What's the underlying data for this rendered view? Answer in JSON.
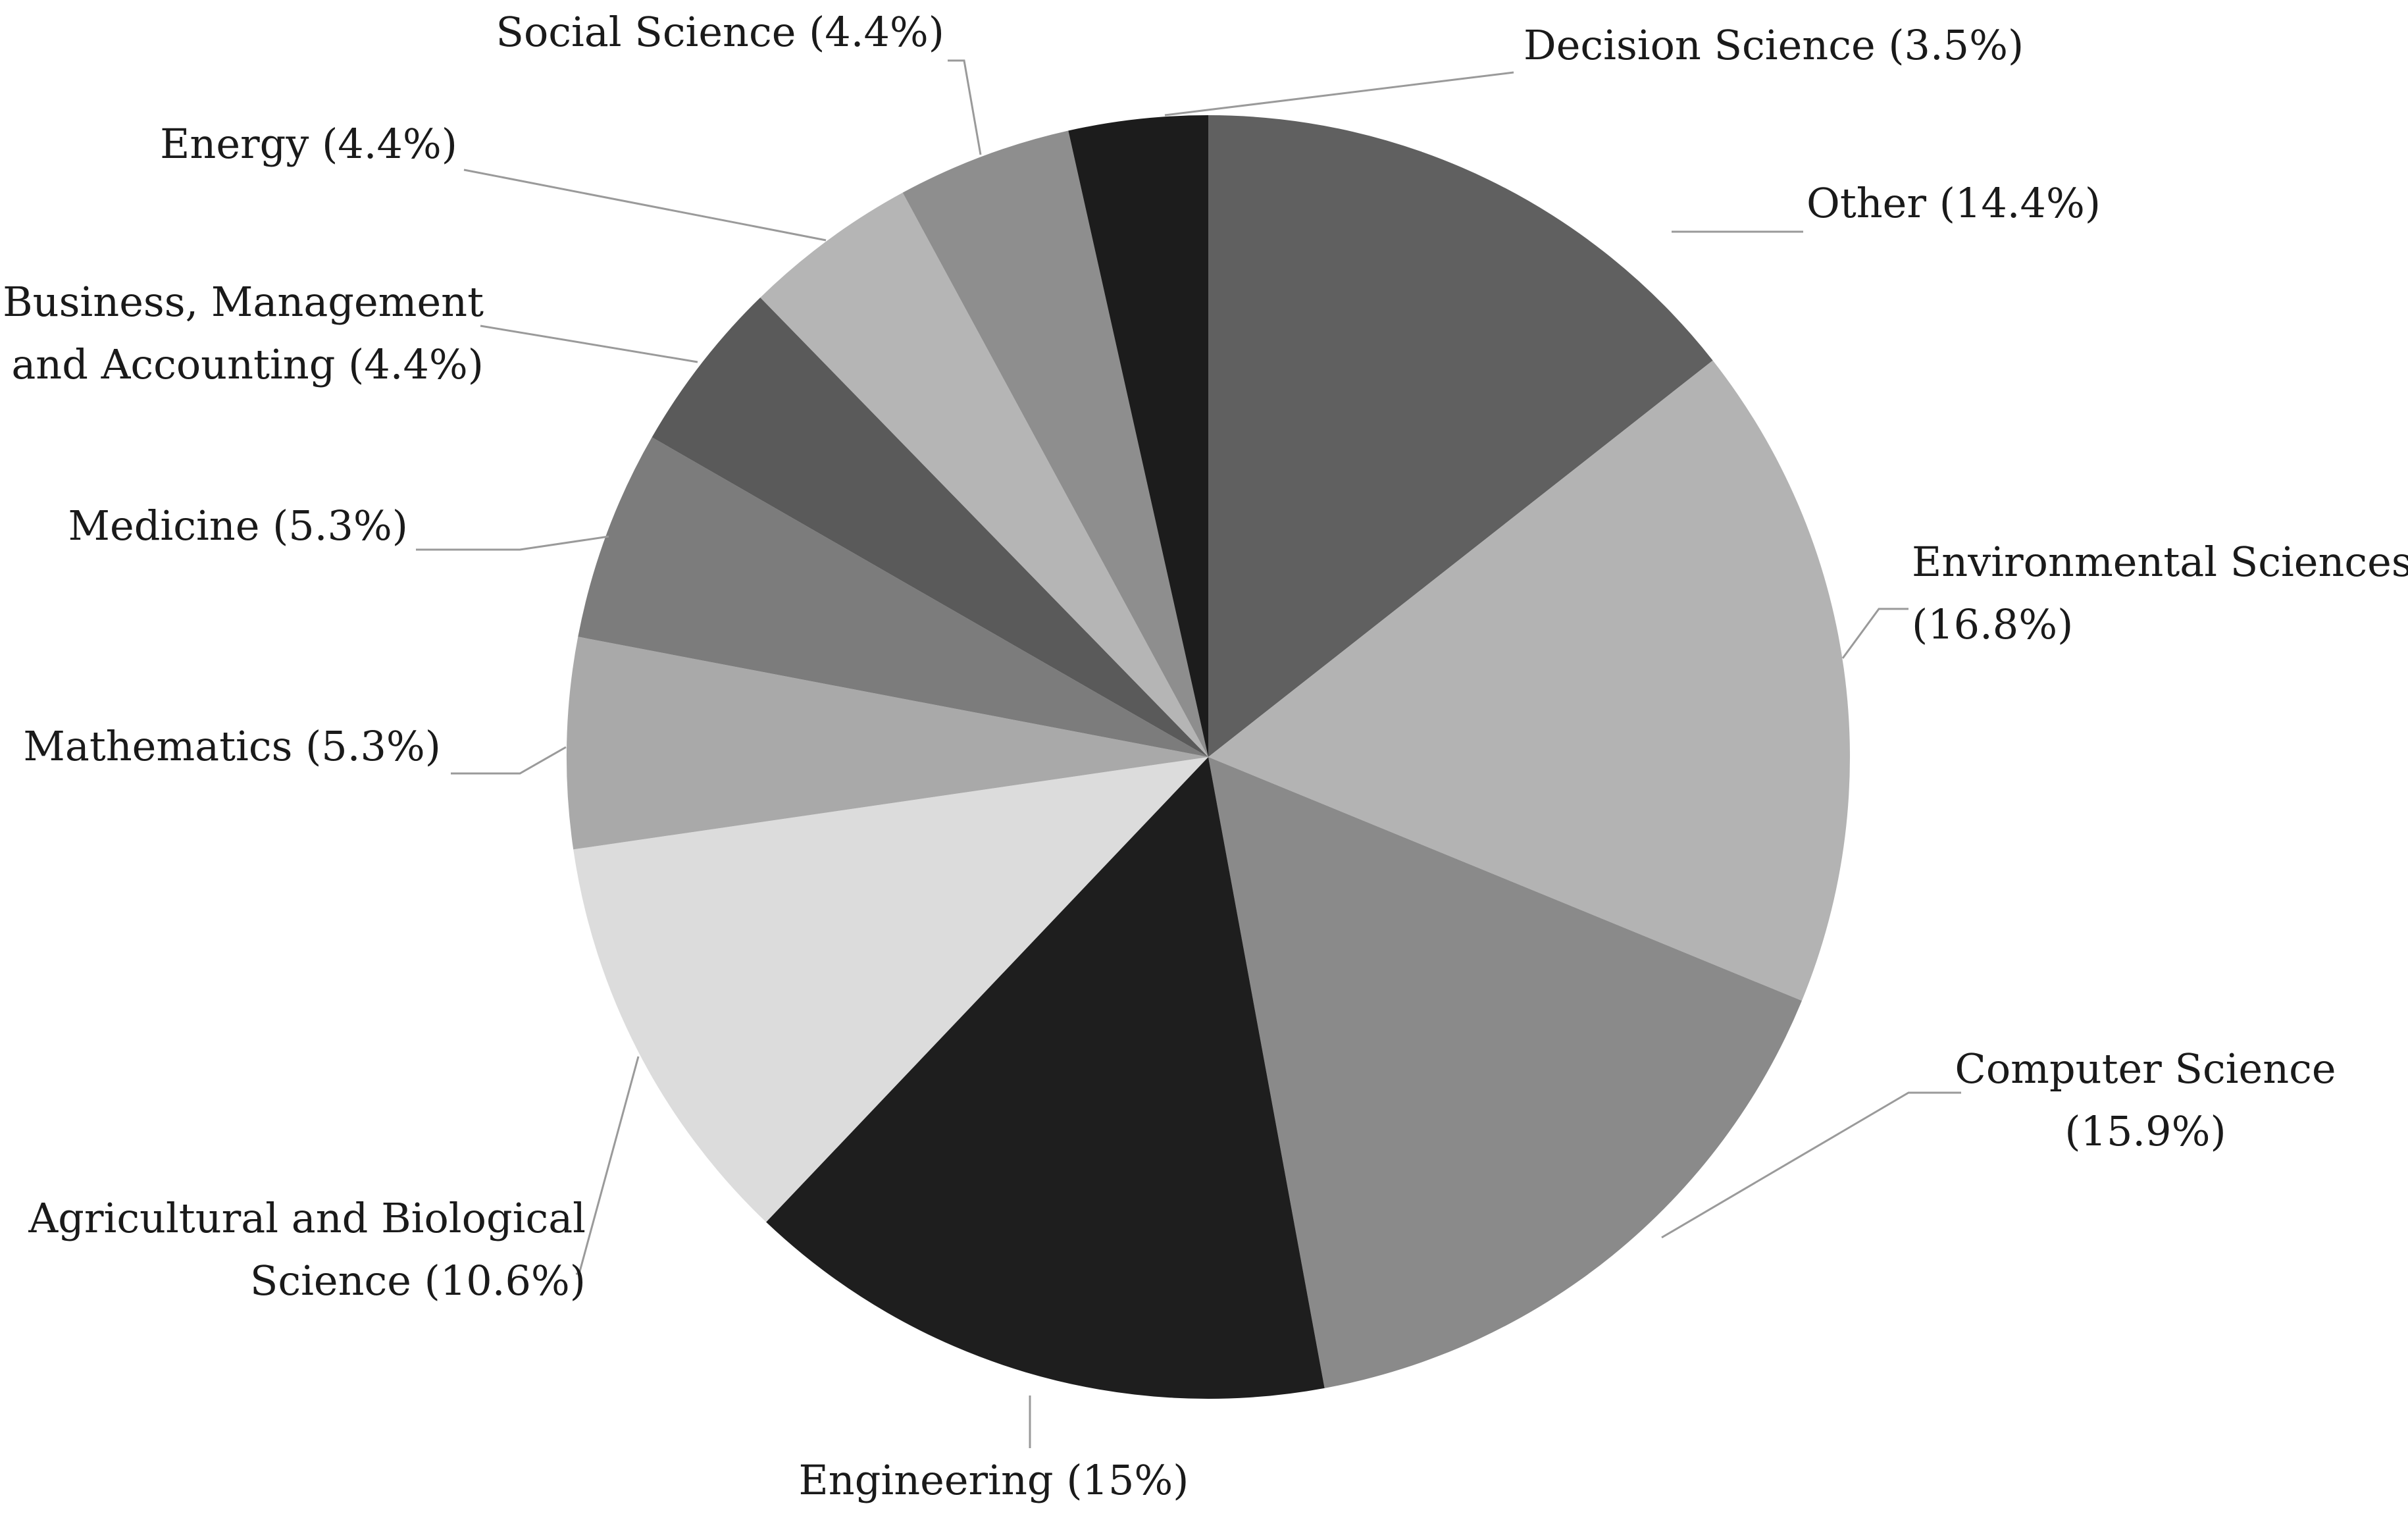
{
  "chart_data": {
    "type": "pie",
    "title": "",
    "slices": [
      {
        "label": "Other",
        "value": 14.4,
        "color": "#606060",
        "label_lines": [
          "Other (14.4%)"
        ]
      },
      {
        "label": "Environmental Sciences",
        "value": 16.8,
        "color": "#b3b3b3",
        "label_lines": [
          "Environmental Sciences",
          "(16.8%)"
        ]
      },
      {
        "label": "Computer Science",
        "value": 15.9,
        "color": "#8a8a8a",
        "label_lines": [
          "Computer Science",
          "(15.9%)"
        ]
      },
      {
        "label": "Engineering",
        "value": 15,
        "color": "#1e1e1e",
        "label_lines": [
          "Engineering (15%)"
        ]
      },
      {
        "label": "Agricultural and Biological Science",
        "value": 10.6,
        "color": "#dcdcdc",
        "label_lines": [
          "Agricultural and Biological",
          "Science (10.6%)"
        ]
      },
      {
        "label": "Mathematics",
        "value": 5.3,
        "color": "#a9a9a9",
        "label_lines": [
          "Mathematics (5.3%)"
        ]
      },
      {
        "label": "Medicine",
        "value": 5.3,
        "color": "#7c7c7c",
        "label_lines": [
          "Medicine (5.3%)"
        ]
      },
      {
        "label": "Business, Management and Accounting",
        "value": 4.4,
        "color": "#5a5a5a",
        "label_lines": [
          "Business, Management",
          "and Accounting (4.4%)"
        ]
      },
      {
        "label": "Energy",
        "value": 4.4,
        "color": "#b5b5b5",
        "label_lines": [
          "Energy (4.4%)"
        ]
      },
      {
        "label": "Social Science",
        "value": 4.4,
        "color": "#8e8e8e",
        "label_lines": [
          "Social Science (4.4%)"
        ]
      },
      {
        "label": "Decision Science",
        "value": 3.5,
        "color": "#1c1c1c",
        "label_lines": [
          "Decision Science (3.5%)"
        ]
      }
    ]
  }
}
